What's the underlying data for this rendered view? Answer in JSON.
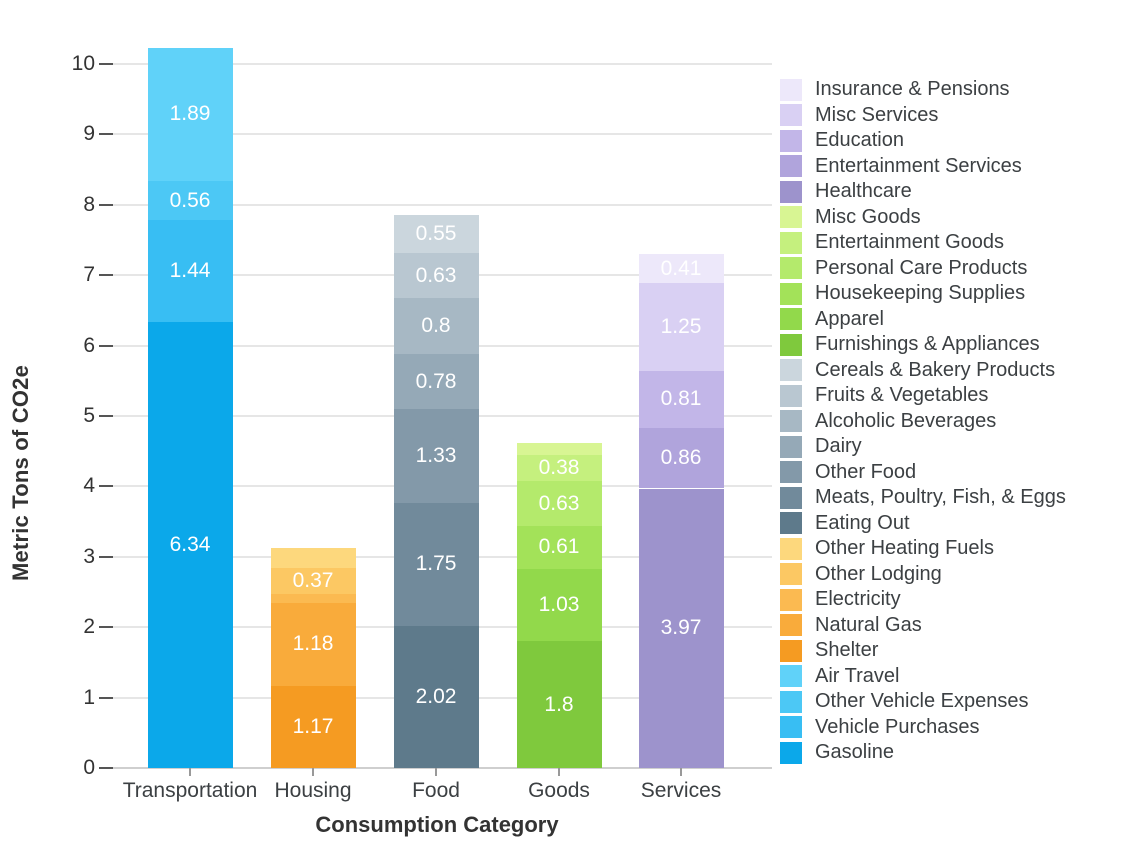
{
  "chart_data": {
    "type": "bar",
    "stacked": true,
    "title": "",
    "xlabel": "Consumption Category",
    "ylabel": "Metric Tons of CO2e",
    "ylim": [
      0,
      10
    ],
    "y_ticks": [
      0,
      1,
      2,
      3,
      4,
      5,
      6,
      7,
      8,
      9,
      10
    ],
    "grid": true,
    "legend_position": "right",
    "categories": [
      "Transportation",
      "Housing",
      "Food",
      "Goods",
      "Services"
    ],
    "bars": [
      {
        "category": "Transportation",
        "segments": [
          {
            "name": "Gasoline",
            "value": 6.34,
            "label": "6.34",
            "color": "#0BA8EA"
          },
          {
            "name": "Vehicle Purchases",
            "value": 1.44,
            "label": "1.44",
            "color": "#38BEF3"
          },
          {
            "name": "Other Vehicle Expenses",
            "value": 0.56,
            "label": "0.56",
            "color": "#4CC8F5"
          },
          {
            "name": "Air Travel",
            "value": 1.89,
            "label": "1.89",
            "color": "#60D2F9"
          }
        ]
      },
      {
        "category": "Housing",
        "segments": [
          {
            "name": "Shelter",
            "value": 1.17,
            "label": "1.17",
            "color": "#F59B22"
          },
          {
            "name": "Natural Gas",
            "value": 1.18,
            "label": "1.18",
            "color": "#F9AB3B"
          },
          {
            "name": "Electricity",
            "value": 0.12,
            "label": null,
            "color": "#FBBA51"
          },
          {
            "name": "Other Lodging",
            "value": 0.37,
            "label": "0.37",
            "color": "#FCC863"
          },
          {
            "name": "Other Heating Fuels",
            "value": 0.29,
            "label": null,
            "color": "#FDD87D"
          }
        ]
      },
      {
        "category": "Food",
        "segments": [
          {
            "name": "Eating Out",
            "value": 2.02,
            "label": "2.02",
            "color": "#5E7A8B"
          },
          {
            "name": "Meats, Poultry, Fish, & Eggs",
            "value": 1.75,
            "label": "1.75",
            "color": "#718A9B"
          },
          {
            "name": "Other Food",
            "value": 1.33,
            "label": "1.33",
            "color": "#8399A9"
          },
          {
            "name": "Dairy",
            "value": 0.78,
            "label": "0.78",
            "color": "#95A9B7"
          },
          {
            "name": "Alcoholic Beverages",
            "value": 0.8,
            "label": "0.8",
            "color": "#A7B8C4"
          },
          {
            "name": "Fruits & Vegetables",
            "value": 0.63,
            "label": "0.63",
            "color": "#B9C7D1"
          },
          {
            "name": "Cereals & Bakery Products",
            "value": 0.55,
            "label": "0.55",
            "color": "#CBD6DD"
          }
        ]
      },
      {
        "category": "Goods",
        "segments": [
          {
            "name": "Furnishings & Appliances",
            "value": 1.8,
            "label": "1.8",
            "color": "#7FC93D"
          },
          {
            "name": "Apparel",
            "value": 1.03,
            "label": "1.03",
            "color": "#92D94B"
          },
          {
            "name": "Housekeeping Supplies",
            "value": 0.61,
            "label": "0.61",
            "color": "#A3E259"
          },
          {
            "name": "Personal Care Products",
            "value": 0.63,
            "label": "0.63",
            "color": "#B4EA6C"
          },
          {
            "name": "Entertainment Goods",
            "value": 0.38,
            "label": "0.38",
            "color": "#C5F07E"
          },
          {
            "name": "Misc Goods",
            "value": 0.17,
            "label": null,
            "color": "#D8F593"
          }
        ]
      },
      {
        "category": "Services",
        "segments": [
          {
            "name": "Healthcare",
            "value": 3.97,
            "label": "3.97",
            "color": "#9D93CC"
          },
          {
            "name": "Entertainment Services",
            "value": 0.86,
            "label": "0.86",
            "color": "#B0A4DC"
          },
          {
            "name": "Education",
            "value": 0.81,
            "label": "0.81",
            "color": "#C2B6E8"
          },
          {
            "name": "Misc Services",
            "value": 1.25,
            "label": "1.25",
            "color": "#D9D0F3"
          },
          {
            "name": "Insurance & Pensions",
            "value": 0.41,
            "label": "0.41",
            "color": "#EDE8FA"
          }
        ]
      }
    ],
    "legend": [
      {
        "name": "Insurance & Pensions",
        "color": "#EDE8FA"
      },
      {
        "name": "Misc Services",
        "color": "#D9D0F3"
      },
      {
        "name": "Education",
        "color": "#C2B6E8"
      },
      {
        "name": "Entertainment Services",
        "color": "#B0A4DC"
      },
      {
        "name": "Healthcare",
        "color": "#9D93CC"
      },
      {
        "name": "Misc Goods",
        "color": "#D8F593"
      },
      {
        "name": "Entertainment Goods",
        "color": "#C5F07E"
      },
      {
        "name": "Personal Care Products",
        "color": "#B4EA6C"
      },
      {
        "name": "Housekeeping Supplies",
        "color": "#A3E259"
      },
      {
        "name": "Apparel",
        "color": "#92D94B"
      },
      {
        "name": "Furnishings & Appliances",
        "color": "#7FC93D"
      },
      {
        "name": "Cereals & Bakery Products",
        "color": "#CBD6DD"
      },
      {
        "name": "Fruits & Vegetables",
        "color": "#B9C7D1"
      },
      {
        "name": "Alcoholic Beverages",
        "color": "#A7B8C4"
      },
      {
        "name": "Dairy",
        "color": "#95A9B7"
      },
      {
        "name": "Other Food",
        "color": "#8399A9"
      },
      {
        "name": "Meats, Poultry, Fish, & Eggs",
        "color": "#718A9B"
      },
      {
        "name": "Eating Out",
        "color": "#5E7A8B"
      },
      {
        "name": "Other Heating Fuels",
        "color": "#FDD87D"
      },
      {
        "name": "Other Lodging",
        "color": "#FCC863"
      },
      {
        "name": "Electricity",
        "color": "#FBBA51"
      },
      {
        "name": "Natural Gas",
        "color": "#F9AB3B"
      },
      {
        "name": "Shelter",
        "color": "#F59B22"
      },
      {
        "name": "Air Travel",
        "color": "#60D2F9"
      },
      {
        "name": "Other Vehicle Expenses",
        "color": "#4CC8F5"
      },
      {
        "name": "Vehicle Purchases",
        "color": "#38BEF3"
      },
      {
        "name": "Gasoline",
        "color": "#0BA8EA"
      }
    ]
  }
}
